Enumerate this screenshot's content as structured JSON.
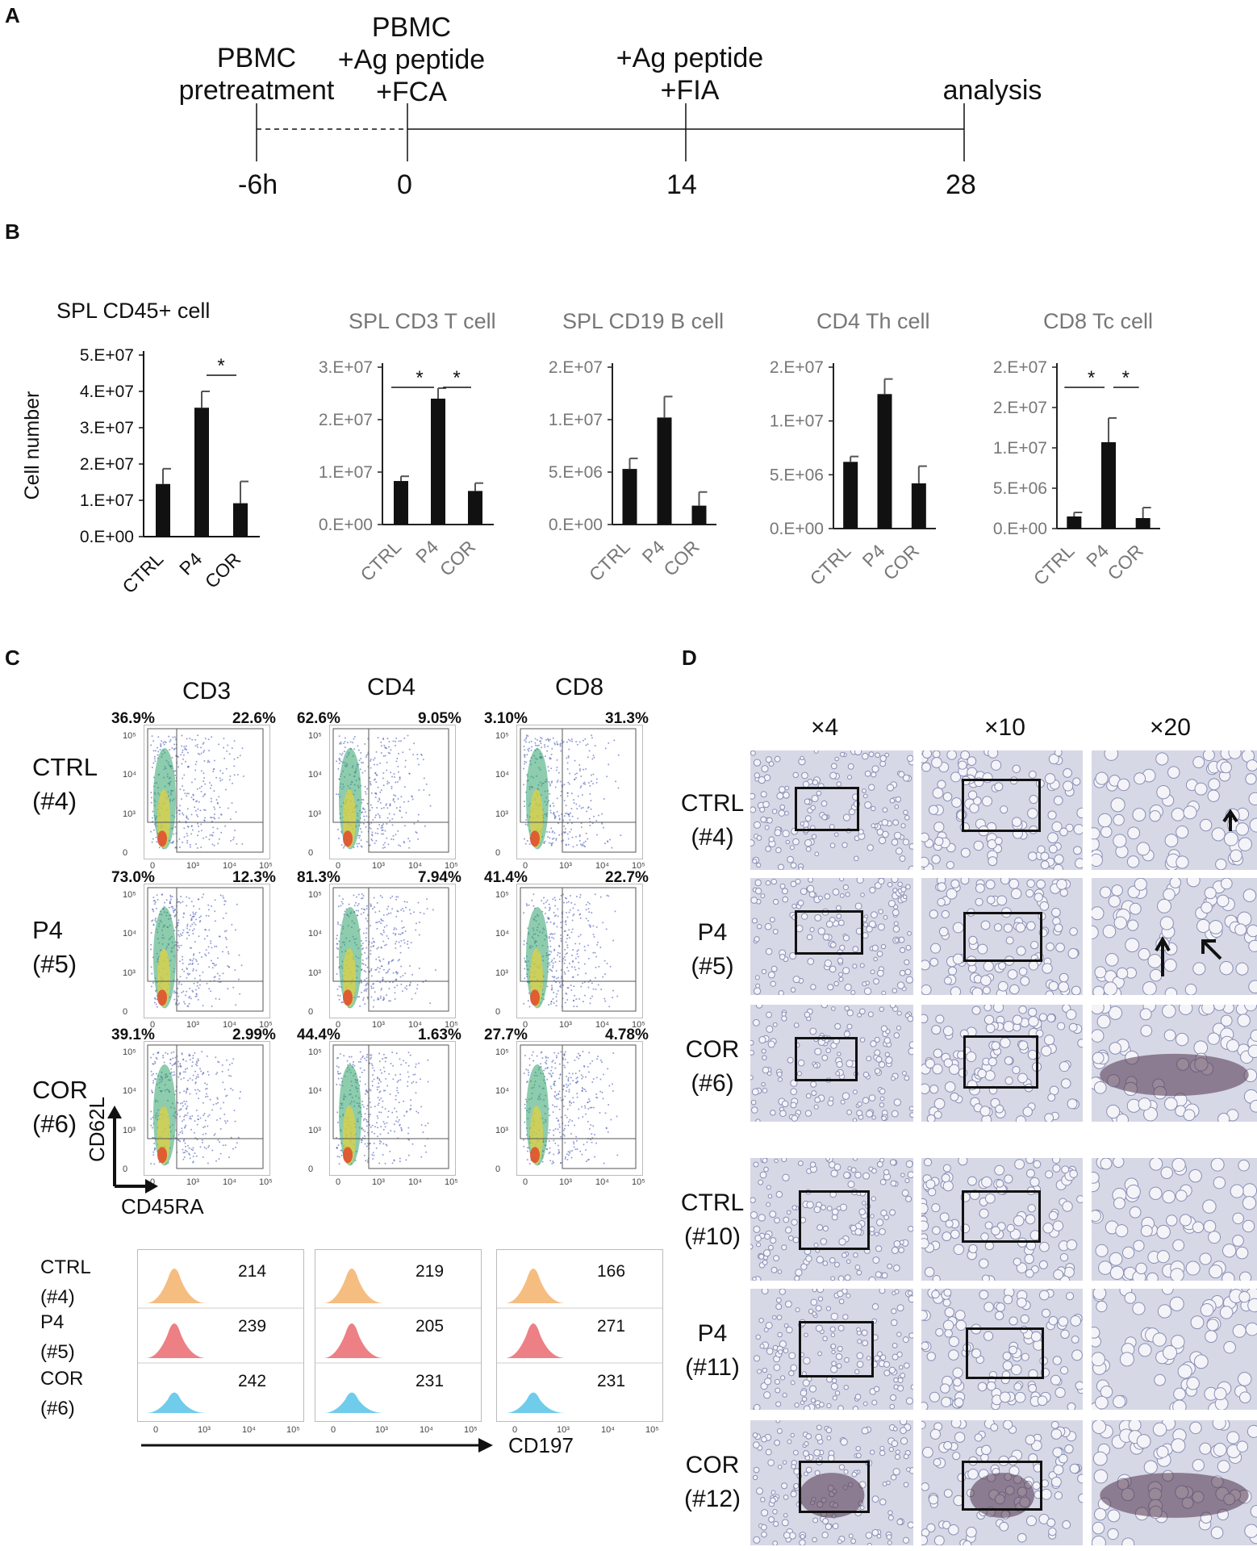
{
  "panels": {
    "a": "A",
    "b": "B",
    "c": "C",
    "d": "D"
  },
  "timeline": {
    "events": [
      {
        "label": "PBMC\npretreatment"
      },
      {
        "label": "PBMC\n+Ag peptide\n+FCA"
      },
      {
        "label": "+Ag peptide\n+FIA"
      },
      {
        "label": "analysis"
      }
    ],
    "ticks": [
      "-6h",
      "0",
      "14",
      "28"
    ]
  },
  "chart_data": [
    {
      "type": "bar",
      "title": "SPL CD45+ cell",
      "ylabel": "Cell number",
      "categories": [
        "CTRL",
        "P4",
        "COR"
      ],
      "values": [
        14500000,
        35500000,
        9200000
      ],
      "errors": [
        4200000,
        4500000,
        6000000
      ],
      "yticks": [
        "0.E+00",
        "1.E+07",
        "2.E+07",
        "3.E+07",
        "4.E+07",
        "5.E+07"
      ],
      "ylim": [
        0,
        50000000
      ],
      "significance": [
        {
          "pair": [
            1,
            2
          ],
          "label": "*"
        }
      ],
      "title_color": "#111111"
    },
    {
      "type": "bar",
      "title": "SPL CD3 T cell",
      "categories": [
        "CTRL",
        "P4",
        "COR"
      ],
      "values": [
        8300000,
        24000000,
        6400000
      ],
      "errors": [
        900000,
        2000000,
        1500000
      ],
      "yticks": [
        "0.E+00",
        "1.E+07",
        "2.E+07",
        "3.E+07"
      ],
      "ylim": [
        0,
        30000000
      ],
      "significance": [
        {
          "pair": [
            0,
            1
          ],
          "label": "*"
        },
        {
          "pair": [
            1,
            2
          ],
          "label": "*"
        }
      ],
      "title_color": "#777777"
    },
    {
      "type": "bar",
      "title": "SPL CD19 B cell",
      "categories": [
        "CTRL",
        "P4",
        "COR"
      ],
      "values": [
        5300000,
        10200000,
        1800000
      ],
      "errors": [
        1000000,
        2000000,
        1300000
      ],
      "yticks": [
        "0.E+00",
        "5.E+06",
        "1.E+07",
        "2.E+07"
      ],
      "ylim": [
        0,
        15000000
      ],
      "significance": [],
      "title_color": "#777777"
    },
    {
      "type": "bar",
      "title": "CD4 Th cell",
      "categories": [
        "CTRL",
        "P4",
        "COR"
      ],
      "values": [
        6200000,
        12500000,
        4200000
      ],
      "errors": [
        500000,
        1400000,
        1600000
      ],
      "yticks": [
        "0.E+00",
        "5.E+06",
        "1.E+07",
        "2.E+07"
      ],
      "ylim": [
        0,
        15000000
      ],
      "significance": [],
      "title_color": "#777777"
    },
    {
      "type": "bar",
      "title": "CD8 Tc cell",
      "categories": [
        "CTRL",
        "P4",
        "COR"
      ],
      "values": [
        1500000,
        10700000,
        1300000
      ],
      "errors": [
        500000,
        3000000,
        1300000
      ],
      "yticks": [
        "0.E+00",
        "5.E+06",
        "1.E+07",
        "2.E+07",
        "2.E+07"
      ],
      "ylim": [
        0,
        20000000
      ],
      "significance": [
        {
          "pair": [
            0,
            1
          ],
          "label": "*"
        },
        {
          "pair": [
            1,
            2
          ],
          "label": "*"
        }
      ],
      "title_color": "#777777"
    }
  ],
  "flow": {
    "columns": [
      "CD3",
      "CD4",
      "CD8"
    ],
    "rows": [
      {
        "label": "CTRL\n(#4)",
        "pcts": [
          [
            "36.9%",
            "22.6%"
          ],
          [
            "62.6%",
            "9.05%"
          ],
          [
            "3.10%",
            "31.3%"
          ]
        ]
      },
      {
        "label": "P4\n(#5)",
        "pcts": [
          [
            "73.0%",
            "12.3%"
          ],
          [
            "81.3%",
            "7.94%"
          ],
          [
            "41.4%",
            "22.7%"
          ]
        ]
      },
      {
        "label": "COR\n(#6)",
        "pcts": [
          [
            "39.1%",
            "2.99%"
          ],
          [
            "44.4%",
            "1.63%"
          ],
          [
            "27.7%",
            "4.78%"
          ]
        ]
      }
    ],
    "yaxis": "CD62L",
    "xaxis": "CD45RA",
    "ticks_y": [
      "10⁵",
      "10⁴",
      "10³",
      "0"
    ],
    "ticks_x": [
      "0",
      "10³",
      "10⁴",
      "10⁵"
    ]
  },
  "histogram": {
    "row_labels": [
      "CTRL\n(#4)",
      "P4\n(#5)",
      "COR\n(#6)"
    ],
    "values": [
      [
        "214",
        "219",
        "166"
      ],
      [
        "239",
        "205",
        "271"
      ],
      [
        "242",
        "231",
        "231"
      ]
    ],
    "colors": [
      "#f5b26b",
      "#e96a6f",
      "#56c3e6"
    ],
    "xaxis": "CD197",
    "ticks": [
      "0",
      "10³",
      "10⁴",
      "10⁵"
    ]
  },
  "histology": {
    "magnifications": [
      "×4",
      "×10",
      "×20"
    ],
    "rows": [
      "CTRL\n(#4)",
      "P4\n(#5)",
      "COR\n(#6)",
      "CTRL\n(#10)",
      "P4\n(#11)",
      "COR\n(#12)"
    ]
  }
}
